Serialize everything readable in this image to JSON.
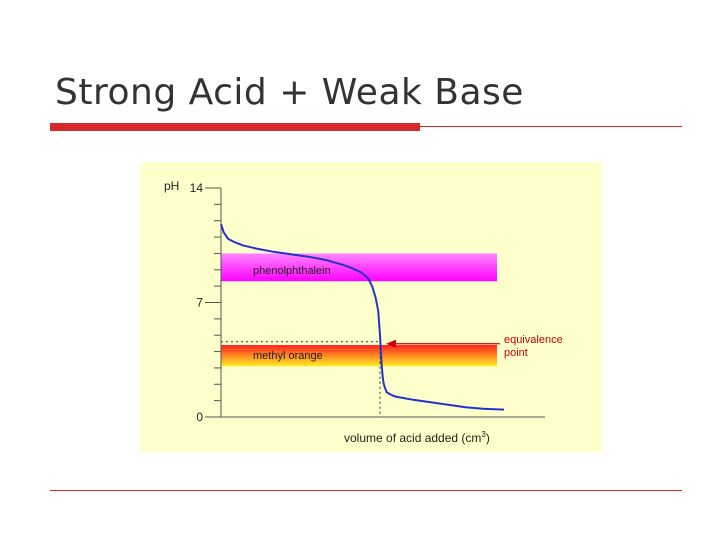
{
  "slide": {
    "title": "Strong Acid + Weak Base"
  },
  "chart_data": {
    "type": "line",
    "ylabel": "pH",
    "xlabel": "volume of acid added (cm",
    "xlabel_superscript": "3",
    "xlabel_close": ")",
    "ylim": [
      0,
      14
    ],
    "y_ticks_labeled": [
      {
        "value": 14,
        "label": "14"
      },
      {
        "value": 7,
        "label": "7"
      },
      {
        "value": 0,
        "label": "0"
      }
    ],
    "y_minor_ticks": [
      1,
      2,
      3,
      4,
      5,
      6,
      8,
      9,
      10,
      11,
      12,
      13
    ],
    "xlim": [
      0,
      34
    ],
    "grid": false,
    "series": [
      {
        "color": "#2233cc",
        "x": [
          0,
          0.3,
          0.8,
          1.5,
          2.5,
          4,
          6,
          8,
          10,
          12,
          14,
          15,
          16,
          16.8,
          17.3,
          17.7,
          18.0,
          18.2,
          18.35,
          18.5,
          18.6,
          18.75,
          19,
          19.5,
          20,
          22,
          24,
          26,
          28,
          30,
          32.4
        ],
        "y": [
          11.8,
          11.3,
          10.9,
          10.7,
          10.5,
          10.3,
          10.1,
          9.95,
          9.8,
          9.6,
          9.3,
          9.1,
          8.85,
          8.5,
          8.0,
          7.3,
          6.5,
          5.0,
          3.5,
          2.5,
          2.1,
          1.8,
          1.5,
          1.35,
          1.25,
          1.05,
          0.9,
          0.75,
          0.6,
          0.5,
          0.45
        ]
      }
    ],
    "indicator_ranges": [
      {
        "label": "phenolphthalein",
        "low": 8.3,
        "high": 10.0,
        "colors": [
          "#ff88ff",
          "#ff00ff"
        ]
      },
      {
        "label": "methyl orange",
        "low": 3.1,
        "high": 4.4,
        "colors": [
          "#ff2222",
          "#ffee22"
        ]
      }
    ],
    "equivalence": {
      "x": 18.2,
      "y": 4.6,
      "label_lines": [
        "equivalence",
        "point"
      ],
      "color": "#cc0000"
    }
  }
}
